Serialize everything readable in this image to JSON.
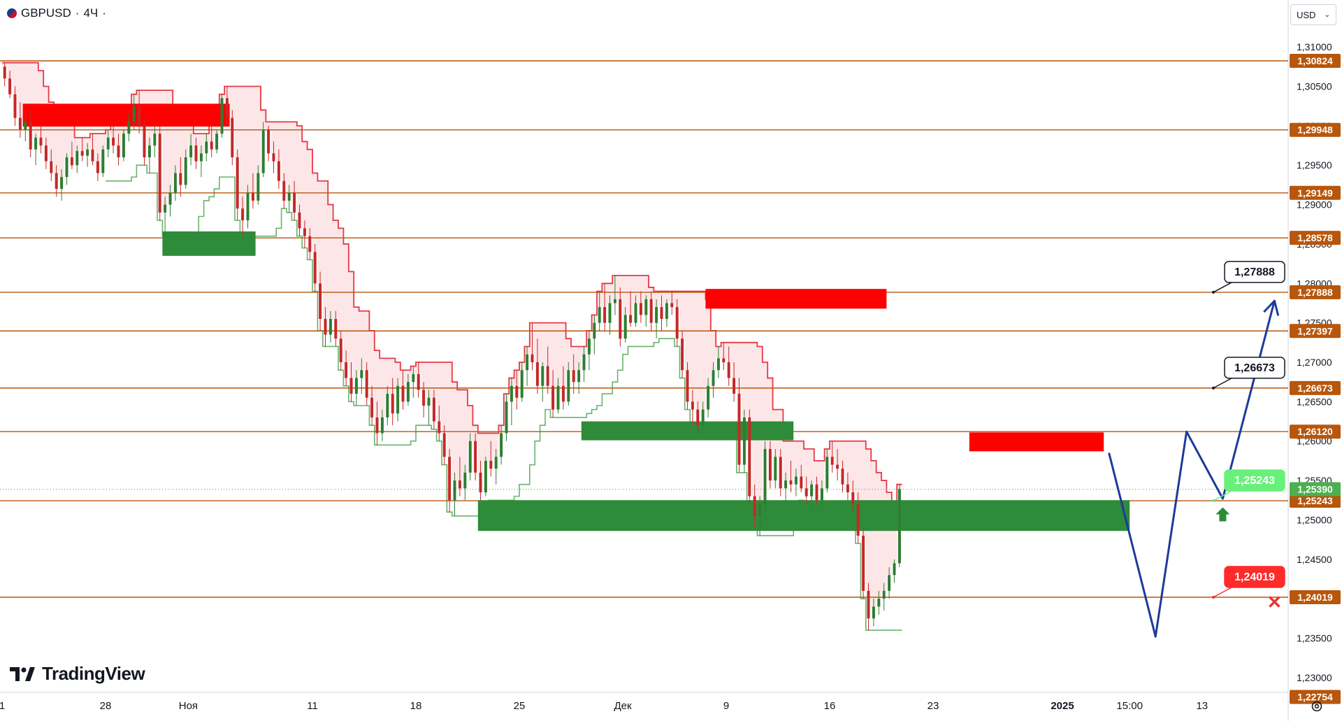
{
  "header": {
    "symbol": "GBPUSD",
    "separator": "·",
    "interval": "4Ч",
    "suffix": "·"
  },
  "currency_select": {
    "label": "USD",
    "chevron_icon": "chevron-down-icon"
  },
  "logo": {
    "text": "TradingView",
    "icon": "tradingview-logo-icon"
  },
  "settings_icon": "gear-icon",
  "colors": {
    "level_line": "#b8560b",
    "level_label_bg": "#b8560b",
    "up_candle": "#2e7d32",
    "down_candle": "#c62828",
    "trend_red": "#e53945",
    "trend_green": "#43a047",
    "resistance_zone": "#ff0000",
    "support_zone": "#2e8b3a",
    "projection": "#1e3a9a",
    "last_price_bg": "#4caf50"
  },
  "chart_data": {
    "type": "candlestick",
    "y_scale": {
      "min": 1.2275,
      "max": 1.3125
    },
    "y_ticks": [
      "1,31000",
      "1,30500",
      "1,30000",
      "1,29500",
      "1,29000",
      "1,28500",
      "1,28000",
      "1,27500",
      "1,27000",
      "1,26500",
      "1,26000",
      "1,25500",
      "1,25000",
      "1,24500",
      "1,24000",
      "1,23500",
      "1,23000"
    ],
    "x_ticks": [
      {
        "label": "1",
        "idx": 0
      },
      {
        "label": "28",
        "idx": 20
      },
      {
        "label": "Ноя",
        "idx": 36
      },
      {
        "label": "11",
        "idx": 60
      },
      {
        "label": "18",
        "idx": 80
      },
      {
        "label": "25",
        "idx": 100
      },
      {
        "label": "Дек",
        "idx": 120
      },
      {
        "label": "9",
        "idx": 140
      },
      {
        "label": "16",
        "idx": 160
      },
      {
        "label": "23",
        "idx": 180
      },
      {
        "label": "2025",
        "idx": 205,
        "bold": true
      },
      {
        "label": "15:00",
        "idx": 218
      },
      {
        "label": "13",
        "idx": 232
      }
    ],
    "candles": [
      [
        1.3075,
        1.308,
        1.305,
        1.306
      ],
      [
        1.306,
        1.307,
        1.3035,
        1.304
      ],
      [
        1.304,
        1.305,
        1.3,
        1.301
      ],
      [
        1.301,
        1.303,
        1.2985,
        1.2995
      ],
      [
        1.2995,
        1.3015,
        1.298,
        1.3005
      ],
      [
        1.3005,
        1.302,
        1.296,
        1.297
      ],
      [
        1.297,
        1.299,
        1.295,
        1.2985
      ],
      [
        1.2985,
        1.3,
        1.2965,
        1.2975
      ],
      [
        1.2975,
        1.2985,
        1.2945,
        1.2955
      ],
      [
        1.2955,
        1.297,
        1.293,
        1.294
      ],
      [
        1.294,
        1.295,
        1.291,
        1.292
      ],
      [
        1.292,
        1.2945,
        1.2905,
        1.2935
      ],
      [
        1.2935,
        1.2965,
        1.2925,
        1.296
      ],
      [
        1.296,
        1.298,
        1.2945,
        1.295
      ],
      [
        1.295,
        1.2975,
        1.294,
        1.2968
      ],
      [
        1.2968,
        1.2985,
        1.2955,
        1.2962
      ],
      [
        1.2962,
        1.2978,
        1.2948,
        1.297
      ],
      [
        1.297,
        1.299,
        1.295,
        1.2955
      ],
      [
        1.2955,
        1.2965,
        1.293,
        1.294
      ],
      [
        1.294,
        1.2975,
        1.2935,
        1.297
      ],
      [
        1.297,
        1.2995,
        1.296,
        1.2985
      ],
      [
        1.2985,
        1.3,
        1.2965,
        1.2975
      ],
      [
        1.2975,
        1.299,
        1.295,
        1.296
      ],
      [
        1.296,
        1.2995,
        1.2955,
        1.299
      ],
      [
        1.299,
        1.3015,
        1.298,
        1.3005
      ],
      [
        1.3005,
        1.304,
        1.2995,
        1.3025
      ],
      [
        1.3025,
        1.3045,
        1.299,
        1.3
      ],
      [
        1.3,
        1.301,
        1.295,
        1.296
      ],
      [
        1.296,
        1.2985,
        1.294,
        1.2975
      ],
      [
        1.2975,
        1.3,
        1.296,
        1.299
      ],
      [
        1.299,
        1.3,
        1.288,
        1.289
      ],
      [
        1.289,
        1.291,
        1.286,
        1.29
      ],
      [
        1.29,
        1.2925,
        1.2885,
        1.2915
      ],
      [
        1.2915,
        1.295,
        1.2905,
        1.294
      ],
      [
        1.294,
        1.296,
        1.291,
        1.2925
      ],
      [
        1.2925,
        1.297,
        1.292,
        1.296
      ],
      [
        1.296,
        1.299,
        1.295,
        1.2975
      ],
      [
        1.2975,
        1.2985,
        1.2945,
        1.2955
      ],
      [
        1.2955,
        1.2975,
        1.2935,
        1.2965
      ],
      [
        1.2965,
        1.299,
        1.2955,
        1.298
      ],
      [
        1.298,
        1.3,
        1.296,
        1.297
      ],
      [
        1.297,
        1.2995,
        1.2965,
        1.299
      ],
      [
        1.299,
        1.304,
        1.2985,
        1.3035
      ],
      [
        1.3035,
        1.305,
        1.3,
        1.301
      ],
      [
        1.301,
        1.302,
        1.295,
        1.296
      ],
      [
        1.296,
        1.297,
        1.288,
        1.2895
      ],
      [
        1.2895,
        1.291,
        1.286,
        1.288
      ],
      [
        1.288,
        1.2925,
        1.287,
        1.2915
      ],
      [
        1.2915,
        1.294,
        1.2895,
        1.2905
      ],
      [
        1.2905,
        1.295,
        1.29,
        1.294
      ],
      [
        1.294,
        1.3005,
        1.2935,
        1.2995
      ],
      [
        1.2995,
        1.3,
        1.2955,
        1.2965
      ],
      [
        1.2965,
        1.298,
        1.294,
        1.2955
      ],
      [
        1.2955,
        1.297,
        1.292,
        1.293
      ],
      [
        1.293,
        1.294,
        1.2895,
        1.2905
      ],
      [
        1.2905,
        1.2925,
        1.289,
        1.2915
      ],
      [
        1.2915,
        1.293,
        1.288,
        1.289
      ],
      [
        1.289,
        1.29,
        1.286,
        1.287
      ],
      [
        1.287,
        1.288,
        1.2845,
        1.286
      ],
      [
        1.286,
        1.287,
        1.283,
        1.284
      ],
      [
        1.284,
        1.285,
        1.279,
        1.28
      ],
      [
        1.28,
        1.2815,
        1.274,
        1.2755
      ],
      [
        1.2755,
        1.277,
        1.272,
        1.2735
      ],
      [
        1.2735,
        1.2765,
        1.2725,
        1.2755
      ],
      [
        1.2755,
        1.2765,
        1.272,
        1.273
      ],
      [
        1.273,
        1.274,
        1.269,
        1.27
      ],
      [
        1.27,
        1.2715,
        1.267,
        1.268
      ],
      [
        1.268,
        1.27,
        1.265,
        1.266
      ],
      [
        1.266,
        1.269,
        1.2645,
        1.268
      ],
      [
        1.268,
        1.2705,
        1.266,
        1.269
      ],
      [
        1.269,
        1.27,
        1.2645,
        1.2655
      ],
      [
        1.2655,
        1.267,
        1.262,
        1.263
      ],
      [
        1.263,
        1.265,
        1.2595,
        1.261
      ],
      [
        1.261,
        1.264,
        1.26,
        1.263
      ],
      [
        1.263,
        1.267,
        1.262,
        1.266
      ],
      [
        1.266,
        1.268,
        1.262,
        1.2635
      ],
      [
        1.2635,
        1.268,
        1.2625,
        1.267
      ],
      [
        1.267,
        1.269,
        1.264,
        1.265
      ],
      [
        1.265,
        1.2685,
        1.2645,
        1.2675
      ],
      [
        1.2675,
        1.2695,
        1.2655,
        1.2685
      ],
      [
        1.2685,
        1.27,
        1.2655,
        1.2665
      ],
      [
        1.2665,
        1.2675,
        1.263,
        1.2645
      ],
      [
        1.2645,
        1.2665,
        1.262,
        1.2655
      ],
      [
        1.2655,
        1.2665,
        1.2615,
        1.2625
      ],
      [
        1.2625,
        1.2645,
        1.26,
        1.261
      ],
      [
        1.261,
        1.262,
        1.257,
        1.258
      ],
      [
        1.258,
        1.259,
        1.251,
        1.2525
      ],
      [
        1.2525,
        1.256,
        1.2505,
        1.255
      ],
      [
        1.255,
        1.258,
        1.253,
        1.254
      ],
      [
        1.254,
        1.257,
        1.2525,
        1.256
      ],
      [
        1.256,
        1.261,
        1.255,
        1.26
      ],
      [
        1.26,
        1.261,
        1.255,
        1.256
      ],
      [
        1.256,
        1.2575,
        1.2525,
        1.2535
      ],
      [
        1.2535,
        1.258,
        1.253,
        1.2575
      ],
      [
        1.2575,
        1.26,
        1.2555,
        1.2565
      ],
      [
        1.2565,
        1.259,
        1.2545,
        1.258
      ],
      [
        1.258,
        1.262,
        1.257,
        1.261
      ],
      [
        1.261,
        1.266,
        1.26,
        1.265
      ],
      [
        1.265,
        1.268,
        1.262,
        1.267
      ],
      [
        1.267,
        1.269,
        1.264,
        1.2655
      ],
      [
        1.2655,
        1.27,
        1.265,
        1.269
      ],
      [
        1.269,
        1.272,
        1.267,
        1.271
      ],
      [
        1.271,
        1.275,
        1.269,
        1.27
      ],
      [
        1.27,
        1.273,
        1.266,
        1.267
      ],
      [
        1.267,
        1.27,
        1.265,
        1.2695
      ],
      [
        1.2695,
        1.272,
        1.266,
        1.267
      ],
      [
        1.267,
        1.269,
        1.263,
        1.264
      ],
      [
        1.264,
        1.268,
        1.2635,
        1.267
      ],
      [
        1.267,
        1.2695,
        1.264,
        1.265
      ],
      [
        1.265,
        1.27,
        1.2645,
        1.269
      ],
      [
        1.269,
        1.271,
        1.266,
        1.2675
      ],
      [
        1.2675,
        1.27,
        1.266,
        1.269
      ],
      [
        1.269,
        1.272,
        1.2675,
        1.271
      ],
      [
        1.271,
        1.274,
        1.269,
        1.273
      ],
      [
        1.273,
        1.276,
        1.271,
        1.275
      ],
      [
        1.275,
        1.279,
        1.274,
        1.277
      ],
      [
        1.277,
        1.28,
        1.274,
        1.275
      ],
      [
        1.275,
        1.2785,
        1.2735,
        1.2775
      ],
      [
        1.2775,
        1.281,
        1.276,
        1.278
      ],
      [
        1.278,
        1.2795,
        1.272,
        1.273
      ],
      [
        1.273,
        1.277,
        1.2725,
        1.276
      ],
      [
        1.276,
        1.279,
        1.2745,
        1.275
      ],
      [
        1.275,
        1.2785,
        1.2745,
        1.2775
      ],
      [
        1.2775,
        1.279,
        1.275,
        1.276
      ],
      [
        1.276,
        1.2785,
        1.2745,
        1.278
      ],
      [
        1.278,
        1.279,
        1.274,
        1.275
      ],
      [
        1.275,
        1.278,
        1.273,
        1.277
      ],
      [
        1.277,
        1.2785,
        1.274,
        1.2755
      ],
      [
        1.2755,
        1.278,
        1.2745,
        1.2775
      ],
      [
        1.2775,
        1.279,
        1.276,
        1.277
      ],
      [
        1.277,
        1.278,
        1.272,
        1.273
      ],
      [
        1.273,
        1.274,
        1.268,
        1.269
      ],
      [
        1.269,
        1.27,
        1.264,
        1.265
      ],
      [
        1.265,
        1.2665,
        1.262,
        1.264
      ],
      [
        1.264,
        1.265,
        1.261,
        1.262
      ],
      [
        1.262,
        1.265,
        1.2615,
        1.264
      ],
      [
        1.264,
        1.268,
        1.263,
        1.267
      ],
      [
        1.267,
        1.27,
        1.2655,
        1.269
      ],
      [
        1.269,
        1.272,
        1.268,
        1.2705
      ],
      [
        1.2705,
        1.2725,
        1.269,
        1.27
      ],
      [
        1.27,
        1.272,
        1.267,
        1.268
      ],
      [
        1.268,
        1.27,
        1.265,
        1.266
      ],
      [
        1.266,
        1.268,
        1.256,
        1.257
      ],
      [
        1.257,
        1.264,
        1.256,
        1.263
      ],
      [
        1.263,
        1.264,
        1.252,
        1.253
      ],
      [
        1.253,
        1.2545,
        1.249,
        1.2505
      ],
      [
        1.2505,
        1.253,
        1.248,
        1.252
      ],
      [
        1.252,
        1.26,
        1.251,
        1.259
      ],
      [
        1.259,
        1.26,
        1.254,
        1.255
      ],
      [
        1.255,
        1.259,
        1.254,
        1.258
      ],
      [
        1.258,
        1.259,
        1.253,
        1.254
      ],
      [
        1.254,
        1.256,
        1.2525,
        1.255
      ],
      [
        1.255,
        1.2575,
        1.2535,
        1.2545
      ],
      [
        1.2545,
        1.2565,
        1.253,
        1.2555
      ],
      [
        1.2555,
        1.257,
        1.2535,
        1.254
      ],
      [
        1.254,
        1.2555,
        1.252,
        1.253
      ],
      [
        1.253,
        1.255,
        1.2515,
        1.2545
      ],
      [
        1.2545,
        1.2555,
        1.252,
        1.2525
      ],
      [
        1.2525,
        1.255,
        1.2515,
        1.254
      ],
      [
        1.254,
        1.259,
        1.2535,
        1.258
      ],
      [
        1.258,
        1.26,
        1.256,
        1.257
      ],
      [
        1.257,
        1.259,
        1.255,
        1.2565
      ],
      [
        1.2565,
        1.2575,
        1.2535,
        1.2545
      ],
      [
        1.2545,
        1.256,
        1.2525,
        1.2535
      ],
      [
        1.2535,
        1.255,
        1.251,
        1.252
      ],
      [
        1.252,
        1.2535,
        1.247,
        1.248
      ],
      [
        1.248,
        1.249,
        1.24,
        1.241
      ],
      [
        1.241,
        1.242,
        1.236,
        1.2375
      ],
      [
        1.2375,
        1.24,
        1.2365,
        1.239
      ],
      [
        1.239,
        1.241,
        1.238,
        1.24
      ],
      [
        1.24,
        1.242,
        1.2385,
        1.241
      ],
      [
        1.241,
        1.244,
        1.24,
        1.243
      ],
      [
        1.243,
        1.245,
        1.242,
        1.2445
      ],
      [
        1.2445,
        1.2545,
        1.244,
        1.2539
      ]
    ],
    "levels": [
      {
        "value": 1.30824,
        "label": "1,30824"
      },
      {
        "value": 1.29948,
        "label": "1,29948"
      },
      {
        "value": 1.29149,
        "label": "1,29149"
      },
      {
        "value": 1.28578,
        "label": "1,28578"
      },
      {
        "value": 1.27888,
        "label": "1,27888"
      },
      {
        "value": 1.27397,
        "label": "1,27397"
      },
      {
        "value": 1.26673,
        "label": "1,26673"
      },
      {
        "value": 1.2612,
        "label": "1,26120"
      },
      {
        "value": 1.25243,
        "label": "1,25243"
      },
      {
        "value": 1.24019,
        "label": "1,24019"
      }
    ],
    "last_price": {
      "value": 1.2539,
      "label": "1,25390"
    },
    "axis_bottom_label": {
      "value": 1.22754,
      "label": "1,22754"
    },
    "resistance_zones": [
      {
        "from_idx": 4,
        "to_idx": 44,
        "top": 1.3028,
        "bottom": 1.2999
      },
      {
        "from_idx": 136,
        "to_idx": 171,
        "top": 1.2793,
        "bottom": 1.2768
      },
      {
        "from_idx": 187,
        "to_idx": 213,
        "top": 1.2611,
        "bottom": 1.2587
      }
    ],
    "support_zones": [
      {
        "from_idx": 31,
        "to_idx": 49,
        "top": 1.2866,
        "bottom": 1.2835
      },
      {
        "from_idx": 112,
        "to_idx": 153,
        "top": 1.2625,
        "bottom": 1.2601
      },
      {
        "from_idx": 92,
        "to_idx": 218,
        "top": 1.2525,
        "bottom": 1.2486
      }
    ],
    "projection_path": [
      {
        "idx": 214,
        "value": 1.2585
      },
      {
        "idx": 223,
        "value": 1.2352
      },
      {
        "idx": 229,
        "value": 1.2612
      },
      {
        "idx": 236,
        "value": 1.2527
      },
      {
        "idx": 246,
        "value": 1.2778
      }
    ],
    "callouts": [
      {
        "label": "1,27888",
        "value": 1.27888,
        "style": "black"
      },
      {
        "label": "1,26673",
        "value": 1.26673,
        "style": "black"
      },
      {
        "label": "1,25243",
        "value": 1.25243,
        "style": "green"
      },
      {
        "label": "1,24019",
        "value": 1.24019,
        "style": "red"
      }
    ],
    "markers": [
      {
        "icon": "up-arrow-icon",
        "idx": 236,
        "value": 1.2507
      },
      {
        "icon": "cross-icon",
        "idx": 246,
        "value": 1.2396
      }
    ]
  }
}
